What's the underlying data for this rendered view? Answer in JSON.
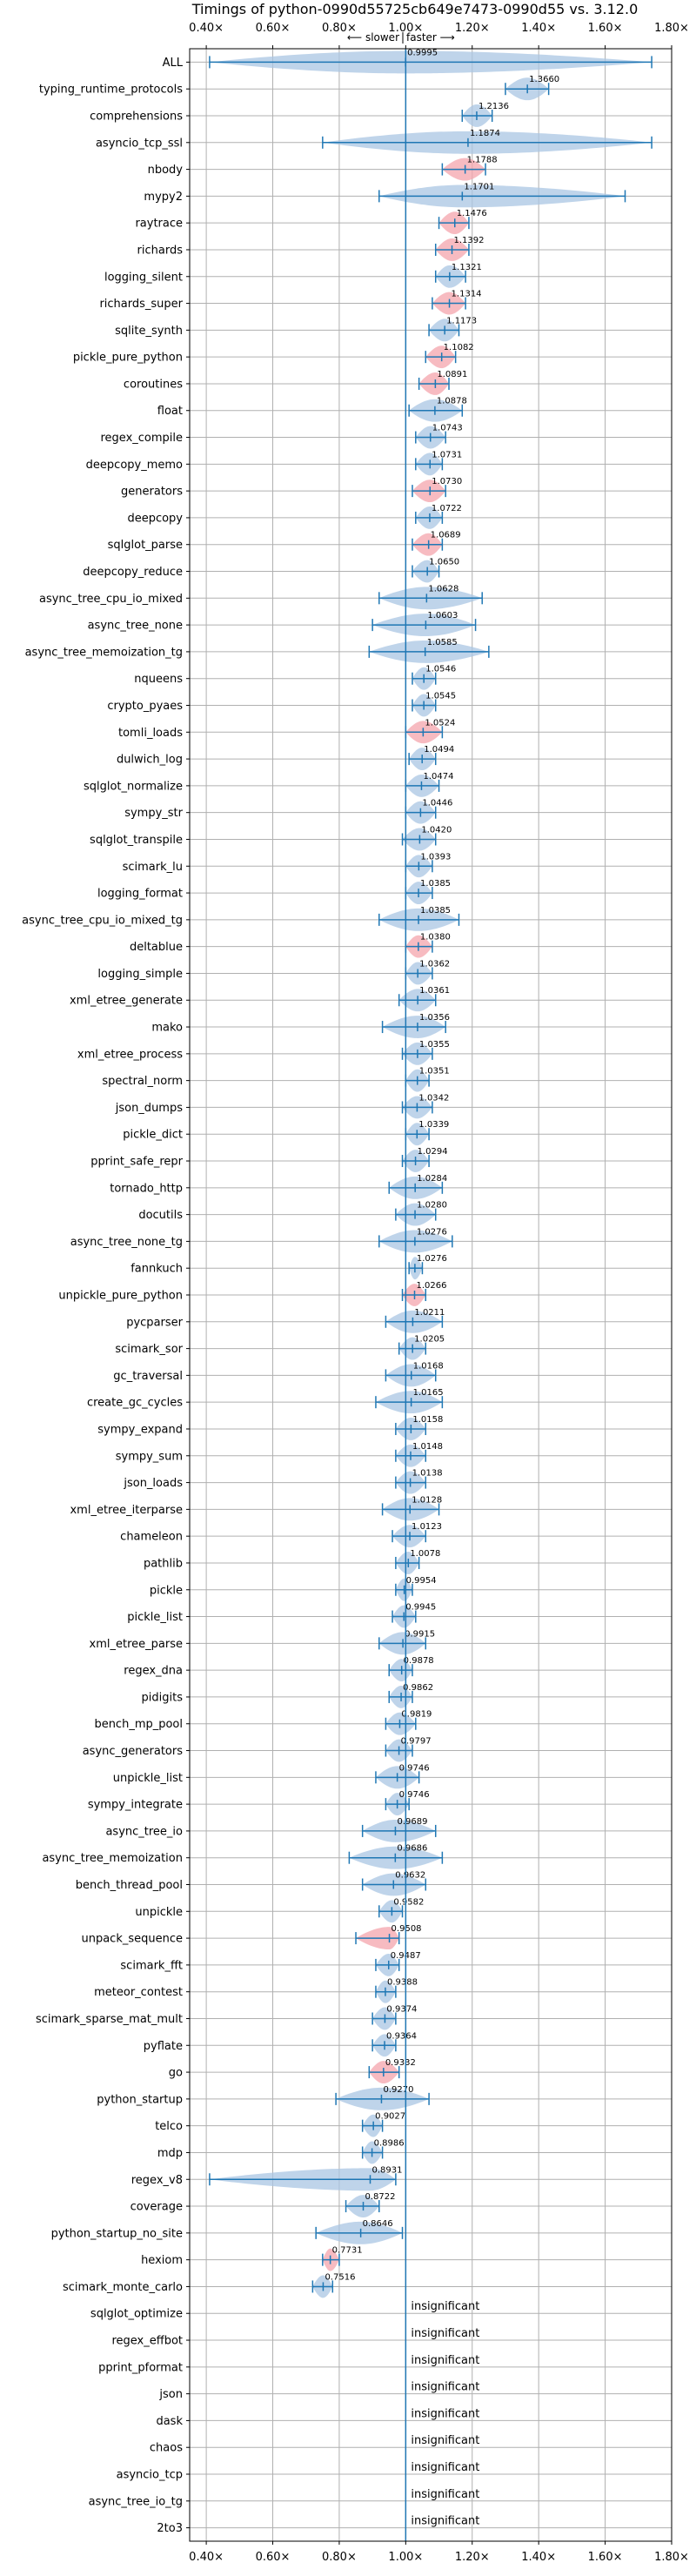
{
  "chart_data": {
    "type": "violin",
    "title": "Timings of python-0990d55725cb649e7473-0990d55 vs. 3.12.0",
    "direction_labels": {
      "slower": "⟵ slower",
      "faster": "faster ⟶"
    },
    "xlim": [
      0.35,
      1.8
    ],
    "xticks": [
      0.4,
      0.6,
      0.8,
      1.0,
      1.2,
      1.4,
      1.6,
      1.8
    ],
    "xtick_labels": [
      "0.40×",
      "0.60×",
      "0.80×",
      "1.00×",
      "1.20×",
      "1.40×",
      "1.60×",
      "1.80×"
    ],
    "reference_line": 1.0,
    "grid": true,
    "insignificant_text": "insignificant",
    "colors": {
      "violin": "#a9c6e3",
      "highlight": "#f4a4ac",
      "axis_line": "#1f77b4"
    },
    "benchmarks": [
      {
        "name": "ALL",
        "value": 0.9995,
        "label": "0.9995",
        "lo": 0.41,
        "hi": 1.74
      },
      {
        "name": "typing_runtime_protocols",
        "value": 1.366,
        "label": "1.3660",
        "lo": 1.3,
        "hi": 1.43
      },
      {
        "name": "comprehensions",
        "value": 1.2136,
        "label": "1.2136",
        "lo": 1.17,
        "hi": 1.26
      },
      {
        "name": "asyncio_tcp_ssl",
        "value": 1.1874,
        "label": "1.1874",
        "lo": 0.75,
        "hi": 1.74
      },
      {
        "name": "nbody",
        "value": 1.1788,
        "label": "1.1788",
        "lo": 1.11,
        "hi": 1.24,
        "highlight": true
      },
      {
        "name": "mypy2",
        "value": 1.1701,
        "label": "1.1701",
        "lo": 0.92,
        "hi": 1.66
      },
      {
        "name": "raytrace",
        "value": 1.1476,
        "label": "1.1476",
        "lo": 1.1,
        "hi": 1.19,
        "highlight": true
      },
      {
        "name": "richards",
        "value": 1.1392,
        "label": "1.1392",
        "lo": 1.09,
        "hi": 1.19,
        "highlight": true
      },
      {
        "name": "logging_silent",
        "value": 1.1321,
        "label": "1.1321",
        "lo": 1.09,
        "hi": 1.18
      },
      {
        "name": "richards_super",
        "value": 1.1314,
        "label": "1.1314",
        "lo": 1.08,
        "hi": 1.18,
        "highlight": true
      },
      {
        "name": "sqlite_synth",
        "value": 1.1173,
        "label": "1.1173",
        "lo": 1.07,
        "hi": 1.16
      },
      {
        "name": "pickle_pure_python",
        "value": 1.1082,
        "label": "1.1082",
        "lo": 1.06,
        "hi": 1.15,
        "highlight": true
      },
      {
        "name": "coroutines",
        "value": 1.0891,
        "label": "1.0891",
        "lo": 1.04,
        "hi": 1.13,
        "highlight": true
      },
      {
        "name": "float",
        "value": 1.0878,
        "label": "1.0878",
        "lo": 1.01,
        "hi": 1.17
      },
      {
        "name": "regex_compile",
        "value": 1.0743,
        "label": "1.0743",
        "lo": 1.03,
        "hi": 1.12
      },
      {
        "name": "deepcopy_memo",
        "value": 1.0731,
        "label": "1.0731",
        "lo": 1.03,
        "hi": 1.11
      },
      {
        "name": "generators",
        "value": 1.073,
        "label": "1.0730",
        "lo": 1.02,
        "hi": 1.12,
        "highlight": true
      },
      {
        "name": "deepcopy",
        "value": 1.0722,
        "label": "1.0722",
        "lo": 1.03,
        "hi": 1.11
      },
      {
        "name": "sqlglot_parse",
        "value": 1.0689,
        "label": "1.0689",
        "lo": 1.02,
        "hi": 1.11,
        "highlight": true
      },
      {
        "name": "deepcopy_reduce",
        "value": 1.065,
        "label": "1.0650",
        "lo": 1.02,
        "hi": 1.1
      },
      {
        "name": "async_tree_cpu_io_mixed",
        "value": 1.0628,
        "label": "1.0628",
        "lo": 0.92,
        "hi": 1.23
      },
      {
        "name": "async_tree_none",
        "value": 1.0603,
        "label": "1.0603",
        "lo": 0.9,
        "hi": 1.21
      },
      {
        "name": "async_tree_memoization_tg",
        "value": 1.0585,
        "label": "1.0585",
        "lo": 0.89,
        "hi": 1.25
      },
      {
        "name": "nqueens",
        "value": 1.0546,
        "label": "1.0546",
        "lo": 1.02,
        "hi": 1.09
      },
      {
        "name": "crypto_pyaes",
        "value": 1.0545,
        "label": "1.0545",
        "lo": 1.02,
        "hi": 1.09
      },
      {
        "name": "tomli_loads",
        "value": 1.0524,
        "label": "1.0524",
        "lo": 1.0,
        "hi": 1.11,
        "highlight": true
      },
      {
        "name": "dulwich_log",
        "value": 1.0494,
        "label": "1.0494",
        "lo": 1.01,
        "hi": 1.09
      },
      {
        "name": "sqlglot_normalize",
        "value": 1.0474,
        "label": "1.0474",
        "lo": 1.0,
        "hi": 1.1
      },
      {
        "name": "sympy_str",
        "value": 1.0446,
        "label": "1.0446",
        "lo": 1.0,
        "hi": 1.09
      },
      {
        "name": "sqlglot_transpile",
        "value": 1.042,
        "label": "1.0420",
        "lo": 0.99,
        "hi": 1.09
      },
      {
        "name": "scimark_lu",
        "value": 1.0393,
        "label": "1.0393",
        "lo": 1.0,
        "hi": 1.08
      },
      {
        "name": "logging_format",
        "value": 1.0385,
        "label": "1.0385",
        "lo": 1.0,
        "hi": 1.08
      },
      {
        "name": "async_tree_cpu_io_mixed_tg",
        "value": 1.0385,
        "label": "1.0385",
        "lo": 0.92,
        "hi": 1.16
      },
      {
        "name": "deltablue",
        "value": 1.038,
        "label": "1.0380",
        "lo": 1.0,
        "hi": 1.08,
        "highlight": true
      },
      {
        "name": "logging_simple",
        "value": 1.0362,
        "label": "1.0362",
        "lo": 1.0,
        "hi": 1.08
      },
      {
        "name": "xml_etree_generate",
        "value": 1.0361,
        "label": "1.0361",
        "lo": 0.98,
        "hi": 1.09
      },
      {
        "name": "mako",
        "value": 1.0356,
        "label": "1.0356",
        "lo": 0.93,
        "hi": 1.12
      },
      {
        "name": "xml_etree_process",
        "value": 1.0355,
        "label": "1.0355",
        "lo": 0.99,
        "hi": 1.08
      },
      {
        "name": "spectral_norm",
        "value": 1.0351,
        "label": "1.0351",
        "lo": 1.0,
        "hi": 1.07
      },
      {
        "name": "json_dumps",
        "value": 1.0342,
        "label": "1.0342",
        "lo": 0.99,
        "hi": 1.08
      },
      {
        "name": "pickle_dict",
        "value": 1.0339,
        "label": "1.0339",
        "lo": 1.0,
        "hi": 1.07
      },
      {
        "name": "pprint_safe_repr",
        "value": 1.0294,
        "label": "1.0294",
        "lo": 0.99,
        "hi": 1.07
      },
      {
        "name": "tornado_http",
        "value": 1.0284,
        "label": "1.0284",
        "lo": 0.95,
        "hi": 1.11
      },
      {
        "name": "docutils",
        "value": 1.028,
        "label": "1.0280",
        "lo": 0.97,
        "hi": 1.09
      },
      {
        "name": "async_tree_none_tg",
        "value": 1.0276,
        "label": "1.0276",
        "lo": 0.92,
        "hi": 1.14
      },
      {
        "name": "fannkuch",
        "value": 1.0276,
        "label": "1.0276",
        "lo": 1.01,
        "hi": 1.05
      },
      {
        "name": "unpickle_pure_python",
        "value": 1.0266,
        "label": "1.0266",
        "lo": 0.99,
        "hi": 1.06,
        "highlight": true
      },
      {
        "name": "pycparser",
        "value": 1.0211,
        "label": "1.0211",
        "lo": 0.94,
        "hi": 1.11
      },
      {
        "name": "scimark_sor",
        "value": 1.0205,
        "label": "1.0205",
        "lo": 0.98,
        "hi": 1.06
      },
      {
        "name": "gc_traversal",
        "value": 1.0168,
        "label": "1.0168",
        "lo": 0.94,
        "hi": 1.09
      },
      {
        "name": "create_gc_cycles",
        "value": 1.0165,
        "label": "1.0165",
        "lo": 0.91,
        "hi": 1.11
      },
      {
        "name": "sympy_expand",
        "value": 1.0158,
        "label": "1.0158",
        "lo": 0.97,
        "hi": 1.06
      },
      {
        "name": "sympy_sum",
        "value": 1.0148,
        "label": "1.0148",
        "lo": 0.97,
        "hi": 1.06
      },
      {
        "name": "json_loads",
        "value": 1.0138,
        "label": "1.0138",
        "lo": 0.97,
        "hi": 1.06
      },
      {
        "name": "xml_etree_iterparse",
        "value": 1.0128,
        "label": "1.0128",
        "lo": 0.93,
        "hi": 1.1
      },
      {
        "name": "chameleon",
        "value": 1.0123,
        "label": "1.0123",
        "lo": 0.96,
        "hi": 1.06
      },
      {
        "name": "pathlib",
        "value": 1.0078,
        "label": "1.0078",
        "lo": 0.97,
        "hi": 1.04
      },
      {
        "name": "pickle",
        "value": 0.9954,
        "label": "0.9954",
        "lo": 0.97,
        "hi": 1.02
      },
      {
        "name": "pickle_list",
        "value": 0.9945,
        "label": "0.9945",
        "lo": 0.96,
        "hi": 1.03
      },
      {
        "name": "xml_etree_parse",
        "value": 0.9915,
        "label": "0.9915",
        "lo": 0.92,
        "hi": 1.06
      },
      {
        "name": "regex_dna",
        "value": 0.9878,
        "label": "0.9878",
        "lo": 0.95,
        "hi": 1.02
      },
      {
        "name": "pidigits",
        "value": 0.9862,
        "label": "0.9862",
        "lo": 0.95,
        "hi": 1.02
      },
      {
        "name": "bench_mp_pool",
        "value": 0.9819,
        "label": "0.9819",
        "lo": 0.94,
        "hi": 1.03
      },
      {
        "name": "async_generators",
        "value": 0.9797,
        "label": "0.9797",
        "lo": 0.94,
        "hi": 1.02
      },
      {
        "name": "unpickle_list",
        "value": 0.9746,
        "label": "0.9746",
        "lo": 0.91,
        "hi": 1.04
      },
      {
        "name": "sympy_integrate",
        "value": 0.9746,
        "label": "0.9746",
        "lo": 0.94,
        "hi": 1.01
      },
      {
        "name": "async_tree_io",
        "value": 0.9689,
        "label": "0.9689",
        "lo": 0.87,
        "hi": 1.09
      },
      {
        "name": "async_tree_memoization",
        "value": 0.9686,
        "label": "0.9686",
        "lo": 0.83,
        "hi": 1.11
      },
      {
        "name": "bench_thread_pool",
        "value": 0.9632,
        "label": "0.9632",
        "lo": 0.87,
        "hi": 1.06
      },
      {
        "name": "unpickle",
        "value": 0.9582,
        "label": "0.9582",
        "lo": 0.92,
        "hi": 0.99
      },
      {
        "name": "unpack_sequence",
        "value": 0.9508,
        "label": "0.9508",
        "lo": 0.85,
        "hi": 0.98,
        "highlight": true
      },
      {
        "name": "scimark_fft",
        "value": 0.9487,
        "label": "0.9487",
        "lo": 0.91,
        "hi": 0.98
      },
      {
        "name": "meteor_contest",
        "value": 0.9388,
        "label": "0.9388",
        "lo": 0.91,
        "hi": 0.97
      },
      {
        "name": "scimark_sparse_mat_mult",
        "value": 0.9374,
        "label": "0.9374",
        "lo": 0.9,
        "hi": 0.97
      },
      {
        "name": "pyflate",
        "value": 0.9364,
        "label": "0.9364",
        "lo": 0.9,
        "hi": 0.97
      },
      {
        "name": "go",
        "value": 0.9332,
        "label": "0.9332",
        "lo": 0.89,
        "hi": 0.98,
        "highlight": true
      },
      {
        "name": "python_startup",
        "value": 0.927,
        "label": "0.9270",
        "lo": 0.79,
        "hi": 1.07
      },
      {
        "name": "telco",
        "value": 0.9027,
        "label": "0.9027",
        "lo": 0.87,
        "hi": 0.93
      },
      {
        "name": "mdp",
        "value": 0.8986,
        "label": "0.8986",
        "lo": 0.87,
        "hi": 0.93
      },
      {
        "name": "regex_v8",
        "value": 0.8931,
        "label": "0.8931",
        "lo": 0.41,
        "hi": 0.97
      },
      {
        "name": "coverage",
        "value": 0.8722,
        "label": "0.8722",
        "lo": 0.82,
        "hi": 0.92
      },
      {
        "name": "python_startup_no_site",
        "value": 0.8646,
        "label": "0.8646",
        "lo": 0.73,
        "hi": 0.99
      },
      {
        "name": "hexiom",
        "value": 0.7731,
        "label": "0.7731",
        "lo": 0.75,
        "hi": 0.8,
        "highlight": true
      },
      {
        "name": "scimark_monte_carlo",
        "value": 0.7516,
        "label": "0.7516",
        "lo": 0.72,
        "hi": 0.78
      },
      {
        "name": "sqlglot_optimize",
        "insignificant": true
      },
      {
        "name": "regex_effbot",
        "insignificant": true
      },
      {
        "name": "pprint_pformat",
        "insignificant": true
      },
      {
        "name": "json",
        "insignificant": true
      },
      {
        "name": "dask",
        "insignificant": true
      },
      {
        "name": "chaos",
        "insignificant": true
      },
      {
        "name": "asyncio_tcp",
        "insignificant": true
      },
      {
        "name": "async_tree_io_tg",
        "insignificant": true
      },
      {
        "name": "2to3",
        "insignificant": true
      }
    ]
  }
}
